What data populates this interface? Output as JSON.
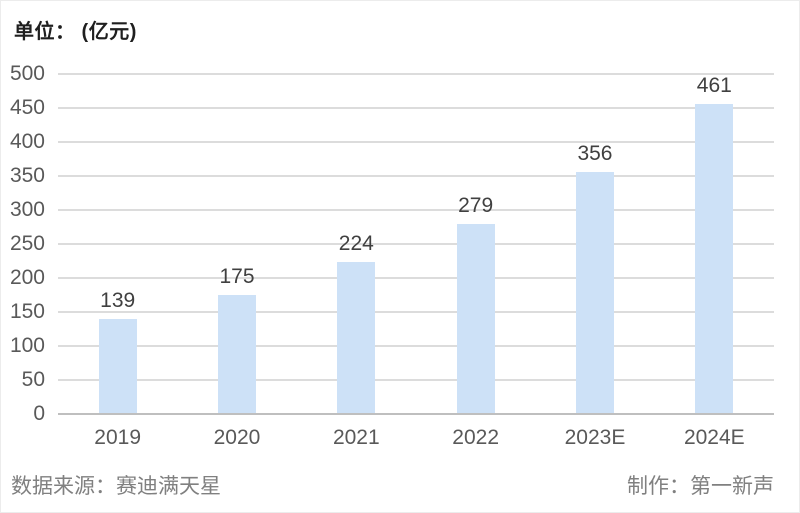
{
  "header": {
    "unit_label": "单位： (亿元)"
  },
  "chart_data": {
    "type": "bar",
    "categories": [
      "2019",
      "2020",
      "2021",
      "2022",
      "2023E",
      "2024E"
    ],
    "values": [
      139,
      175,
      224,
      279,
      356,
      461
    ],
    "title": "单位： (亿元)",
    "xlabel": "",
    "ylabel": "",
    "ylim": [
      0,
      500
    ],
    "ytick_step": 50,
    "grid": true,
    "legend_position": "none",
    "bar_color": "#cde1f7",
    "gridline_color": "#dcdcdc",
    "axis_line_color": "#bfbfbf",
    "value_label_color": "#404040",
    "tick_label_color": "#595959"
  },
  "footer": {
    "source": "数据来源：赛迪满天星",
    "credit": "制作：第一新声"
  }
}
